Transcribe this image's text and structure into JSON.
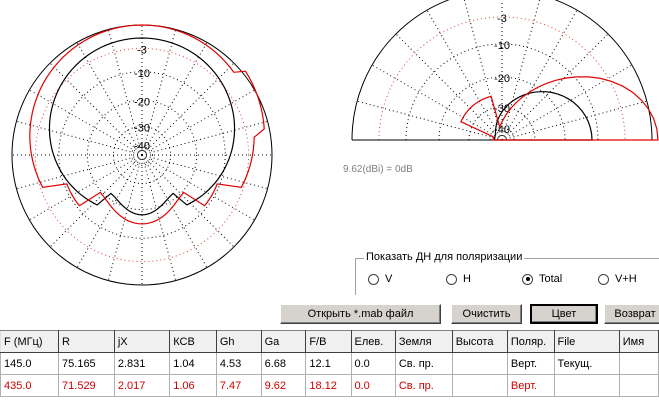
{
  "plot_left": {
    "ring_labels": [
      "-3",
      "-10",
      "-20",
      "-30",
      "-40"
    ]
  },
  "plot_right": {
    "ring_labels": [
      "-3",
      "-10",
      "-20",
      "-30",
      "-40"
    ]
  },
  "gain_note": "9.62(dBi) = 0dB",
  "polarization": {
    "legend": "Показать ДН для поляризации",
    "options": [
      {
        "label": "V",
        "selected": false
      },
      {
        "label": "H",
        "selected": false
      },
      {
        "label": "Total",
        "selected": true
      },
      {
        "label": "V+H",
        "selected": false
      }
    ]
  },
  "buttons": {
    "open": "Открыть *.mab файл",
    "clear": "Очистить",
    "color": "Цвет",
    "back": "Возврат"
  },
  "table": {
    "headers": [
      "F (МГц)",
      "R",
      "jX",
      "КСВ",
      "Gh",
      "Ga",
      "F/B",
      "Елев.",
      "Земля",
      "Высота",
      "Поляр.",
      "File",
      "Имя"
    ],
    "rows": [
      [
        "145.0",
        "75.165",
        "2.831",
        "1.04",
        "4.53",
        "6.68",
        "12.1",
        "0.0",
        "Св. пр.",
        "",
        "Верт.",
        "Текущ.",
        ""
      ],
      [
        "435.0",
        "71.529",
        "2.017",
        "1.06",
        "7.47",
        "9.62",
        "18.12",
        "0.0",
        "Св. пр.",
        "",
        "Верт.",
        "",
        ""
      ]
    ]
  },
  "colors": {
    "row1": "#000000",
    "row2": "#d00000"
  }
}
